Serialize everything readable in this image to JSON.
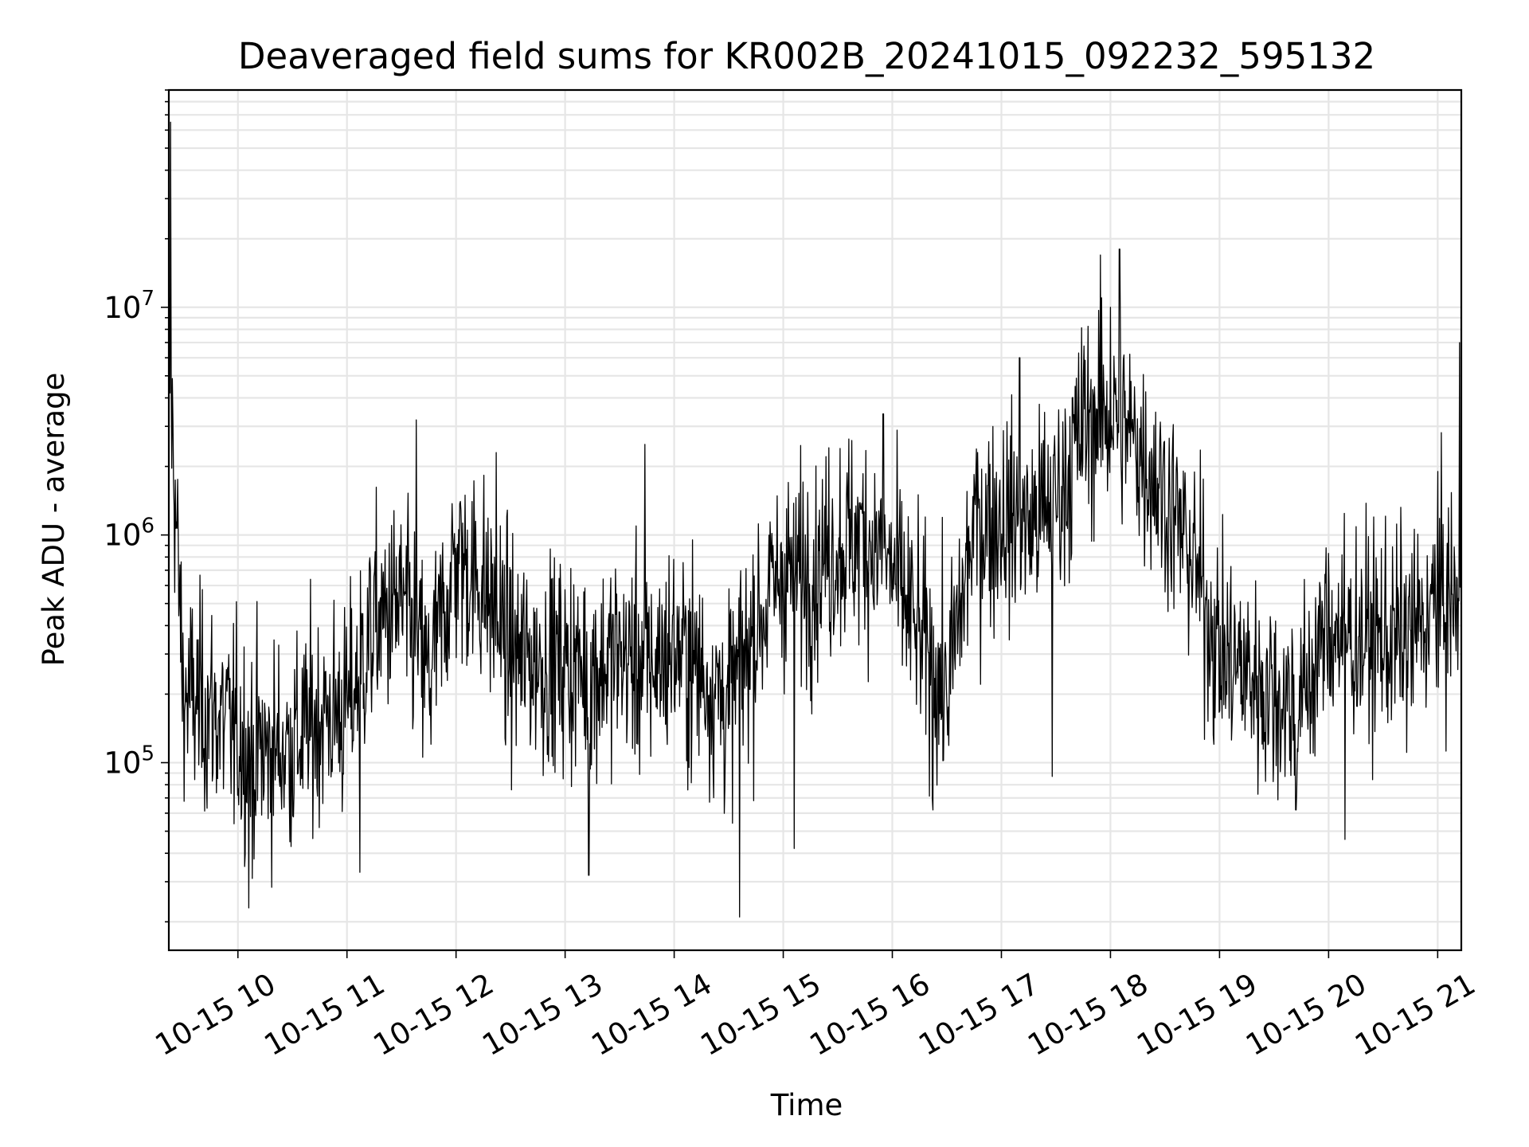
{
  "chart_data": {
    "type": "line",
    "title": "Deaveraged field sums for KR002B_20241015_092232_595132",
    "xlabel": "Time",
    "ylabel": "Peak ADU - average",
    "x_range": [
      "2024-10-15 09:22",
      "2024-10-15 21:13"
    ],
    "ylim": [
      15000,
      90000000
    ],
    "yscale": "log",
    "grid": true,
    "x_ticks": [
      "10-15 10",
      "10-15 11",
      "10-15 12",
      "10-15 13",
      "10-15 14",
      "10-15 15",
      "10-15 16",
      "10-15 17",
      "10-15 18",
      "10-15 19",
      "10-15 20",
      "10-15 21"
    ],
    "y_ticks": [
      {
        "value": 100000,
        "base": "10",
        "exp": "5"
      },
      {
        "value": 1000000,
        "base": "10",
        "exp": "6"
      },
      {
        "value": 10000000,
        "base": "10",
        "exp": "7"
      }
    ],
    "colors": {
      "line": "#000000",
      "grid": "#e6e6e6"
    },
    "series": [
      {
        "x": [
          "09:22",
          "09:30",
          "09:45",
          "10:00",
          "10:15",
          "10:30",
          "10:45",
          "11:00",
          "11:15",
          "11:30",
          "11:45",
          "12:00",
          "12:15",
          "12:30",
          "12:45",
          "13:00",
          "13:15",
          "13:30",
          "13:45",
          "14:00",
          "14:15",
          "14:30",
          "14:45",
          "15:00",
          "15:15",
          "15:30",
          "15:45",
          "16:00",
          "16:15",
          "16:30",
          "16:45",
          "17:00",
          "17:15",
          "17:30",
          "17:45",
          "18:00",
          "18:15",
          "18:30",
          "18:45",
          "19:00",
          "19:15",
          "19:30",
          "19:45",
          "20:00",
          "20:15",
          "20:30",
          "20:45",
          "21:00",
          "21:13"
        ],
        "y": [
          6500000,
          200000,
          170000,
          130000,
          110000,
          120000,
          160000,
          170000,
          400000,
          500000,
          230000,
          800000,
          600000,
          300000,
          280000,
          270000,
          250000,
          300000,
          260000,
          320000,
          250000,
          180000,
          400000,
          700000,
          700000,
          900000,
          1000000,
          700000,
          350000,
          200000,
          1100000,
          1200000,
          1100000,
          1400000,
          3000000,
          3500000,
          2500000,
          1500000,
          800000,
          300000,
          250000,
          200000,
          180000,
          400000,
          350000,
          350000,
          350000,
          500000,
          500000
        ],
        "noise": 0.6,
        "spikes": [
          {
            "x": "09:23",
            "y": 65000000
          },
          {
            "x": "21:12",
            "y": 7000000
          },
          {
            "x": "18:05",
            "y": 18000000
          },
          {
            "x": "17:55",
            "y": 11000000
          },
          {
            "x": "18:00",
            "y": 10000000
          },
          {
            "x": "11:38",
            "y": 3200000
          },
          {
            "x": "12:22",
            "y": 2300000
          },
          {
            "x": "13:44",
            "y": 2500000
          },
          {
            "x": "15:55",
            "y": 3400000
          },
          {
            "x": "17:10",
            "y": 6000000
          },
          {
            "x": "21:00",
            "y": 1900000
          },
          {
            "x": "10:06",
            "y": 23000
          },
          {
            "x": "14:36",
            "y": 21000
          },
          {
            "x": "13:13",
            "y": 32000
          },
          {
            "x": "10:08",
            "y": 31000
          },
          {
            "x": "11:07",
            "y": 33000
          },
          {
            "x": "17:28",
            "y": 87000
          },
          {
            "x": "19:42",
            "y": 62000
          },
          {
            "x": "20:09",
            "y": 46000
          },
          {
            "x": "16:22",
            "y": 70000
          },
          {
            "x": "15:06",
            "y": 42000
          }
        ]
      }
    ]
  }
}
